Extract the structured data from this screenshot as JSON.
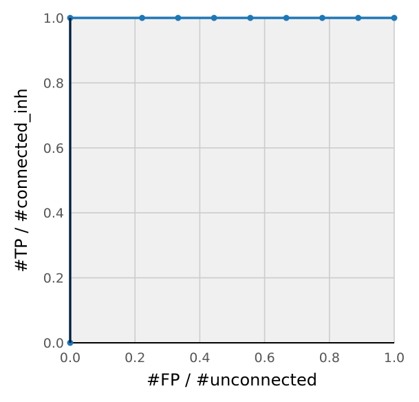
{
  "chart_data": {
    "type": "line",
    "title": "",
    "xlabel": "#FP / #unconnected",
    "ylabel": "#TP / #connected_inh",
    "xlim": [
      0.0,
      1.0
    ],
    "ylim": [
      0.0,
      1.0
    ],
    "grid": true,
    "xticks": [
      0.0,
      0.2,
      0.4,
      0.6,
      0.8,
      1.0
    ],
    "yticks": [
      0.0,
      0.2,
      0.4,
      0.6,
      0.8,
      1.0
    ],
    "xtick_labels": [
      "0.0",
      "0.2",
      "0.4",
      "0.6",
      "0.8",
      "1.0"
    ],
    "ytick_labels": [
      "0.0",
      "0.2",
      "0.4",
      "0.6",
      "0.8",
      "1.0"
    ],
    "series": [
      {
        "color": "#1f77b4",
        "x": [
          0.0,
          0.0,
          0.222,
          0.333,
          0.444,
          0.556,
          0.667,
          0.778,
          0.889,
          1.0
        ],
        "y": [
          0.0,
          1.0,
          1.0,
          1.0,
          1.0,
          1.0,
          1.0,
          1.0,
          1.0,
          1.0
        ]
      }
    ],
    "colors": {
      "background": "#f0f0f0",
      "grid": "#cccccc",
      "line": "#1f77b4",
      "y_axis_line": "#0b1b36",
      "tick_text": "#555555"
    }
  }
}
